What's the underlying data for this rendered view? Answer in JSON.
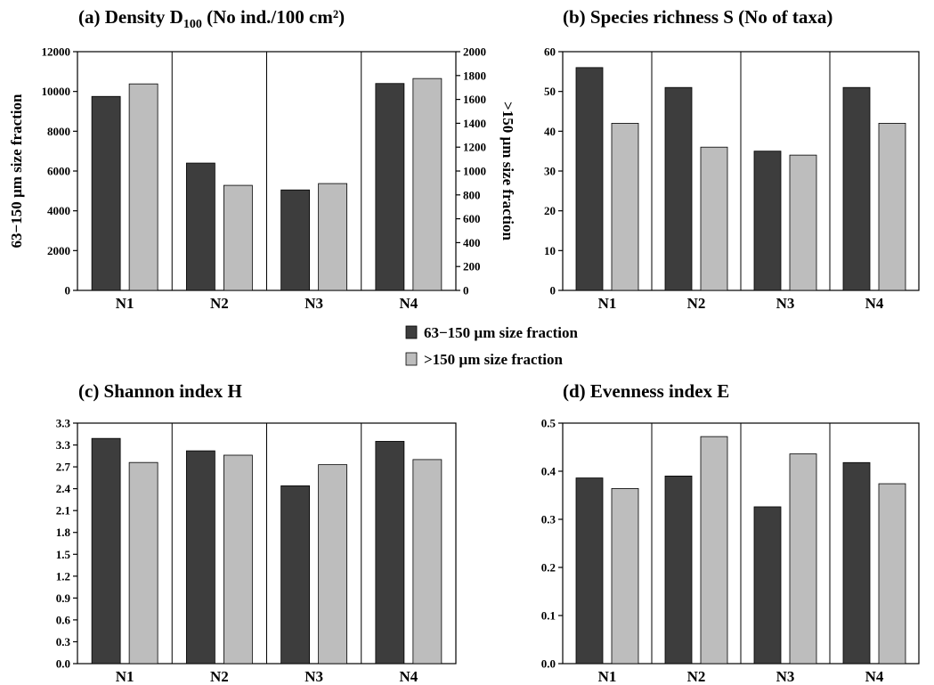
{
  "colors": {
    "fine": "#3d3d3d",
    "coarse": "#bdbdbd"
  },
  "legend": [
    {
      "label": "63−150 µm size  fraction",
      "color": "#3d3d3d"
    },
    {
      "label": ">150 µm size  fraction",
      "color": "#bdbdbd"
    }
  ],
  "chart_data": [
    {
      "type": "bar",
      "title": "(a) Density D",
      "title_sub": "100",
      "title_tail": " (No ind./100 cm²)",
      "categories": [
        "N1",
        "N2",
        "N3",
        "N4"
      ],
      "ylabel": "63−150 µm size  fraction",
      "y2label": ">150 µm size  fraction",
      "ylim": [
        0,
        12000
      ],
      "yticks": [
        "0",
        "2000",
        "4000",
        "6000",
        "8000",
        "10000",
        "12000"
      ],
      "y2lim": [
        0,
        2000
      ],
      "y2ticks": [
        "0",
        "200",
        "400",
        "600",
        "800",
        "1000",
        "1200",
        "1400",
        "1600",
        "1800",
        "2000"
      ],
      "series": [
        {
          "name": "63−150 µm size  fraction",
          "values": [
            9750,
            6400,
            5050,
            10400
          ],
          "axis": "left"
        },
        {
          "name": ">150 µm size  fraction",
          "values": [
            1730,
            880,
            895,
            1775
          ],
          "axis": "right"
        }
      ]
    },
    {
      "type": "bar",
      "title": "(b) Species richness S (No of taxa)",
      "categories": [
        "N1",
        "N2",
        "N3",
        "N4"
      ],
      "ylim": [
        0,
        60
      ],
      "yticks": [
        "0",
        "10",
        "20",
        "30",
        "40",
        "50",
        "60"
      ],
      "series": [
        {
          "name": "63−150 µm size  fraction",
          "values": [
            56,
            51,
            35,
            51
          ]
        },
        {
          "name": ">150 µm size  fraction",
          "values": [
            42,
            36,
            34,
            42
          ]
        }
      ]
    },
    {
      "type": "bar",
      "title": "(c) Shannon index H",
      "categories": [
        "N1",
        "N2",
        "N3",
        "N4"
      ],
      "ylim": [
        0,
        3.3
      ],
      "yticks": [
        "0.0",
        "0.3",
        "0.6",
        "0.9",
        "1.2",
        "1.5",
        "1.8",
        "2.1",
        "2.4",
        "2.7",
        "3.0",
        "3.3"
      ],
      "ytick_labels": [
        "0.0",
        "0.3",
        "0.6",
        "0.9",
        "1.2",
        "1.5",
        "1.8",
        "2.1",
        "2.4",
        "2.7",
        "3.3",
        "3.3"
      ],
      "series": [
        {
          "name": "63−150 µm size  fraction",
          "values": [
            3.09,
            2.92,
            2.44,
            3.05
          ]
        },
        {
          "name": ">150 µm size  fraction",
          "values": [
            2.76,
            2.86,
            2.73,
            2.8
          ]
        }
      ]
    },
    {
      "type": "bar",
      "title": "(d) Evenness index E",
      "categories": [
        "N1",
        "N2",
        "N3",
        "N4"
      ],
      "ylim": [
        0,
        0.5
      ],
      "yticks": [
        "0.0",
        "0.1",
        "0.2",
        "0.3",
        "0.4",
        "0.5"
      ],
      "series": [
        {
          "name": "63−150 µm size  fraction",
          "values": [
            0.386,
            0.39,
            0.326,
            0.418
          ]
        },
        {
          "name": ">150 µm size  fraction",
          "values": [
            0.364,
            0.472,
            0.436,
            0.374
          ]
        }
      ]
    }
  ]
}
